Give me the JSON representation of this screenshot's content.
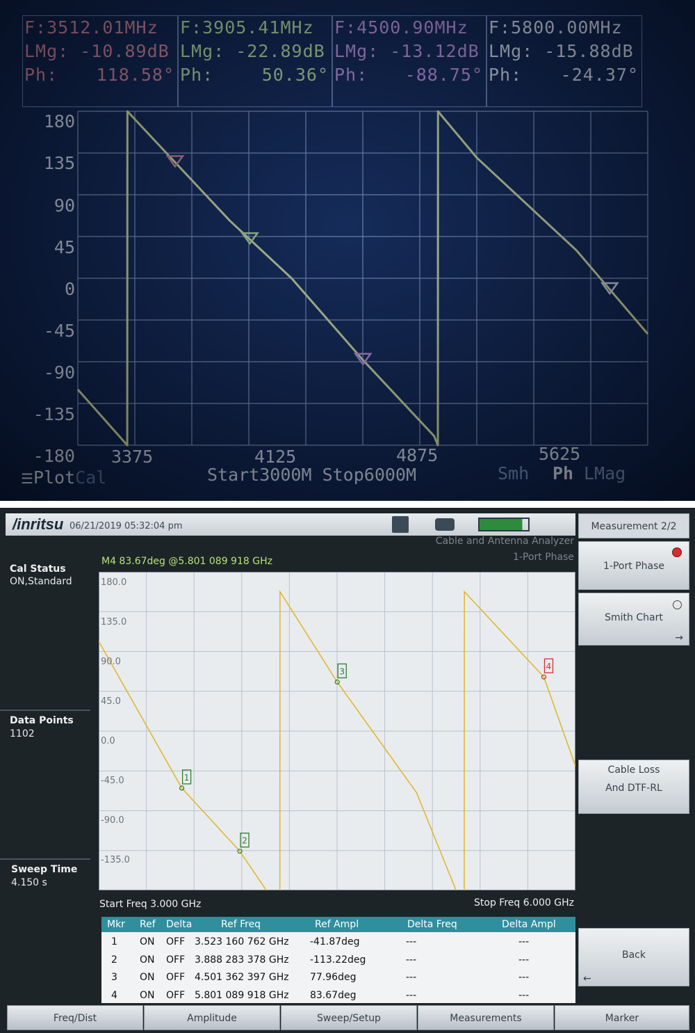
{
  "vna": {
    "markers": [
      {
        "freq": "F:3512.01MHz",
        "lmag": "LMg: -10.89dB",
        "phase_label": "Ph:",
        "phase_value": "118.58°",
        "color": "#e58a9a"
      },
      {
        "freq": "F:3905.41MHz",
        "lmag": "LMg: -22.89dB",
        "phase_label": "Ph:",
        "phase_value": "50.36°",
        "color": "#c8ee9a"
      },
      {
        "freq": "F:4500.90MHz",
        "lmag": "LMg: -13.12dB",
        "phase_label": "Ph:",
        "phase_value": "-88.75°",
        "color": "#d59ae8"
      },
      {
        "freq": "F:5800.00MHz",
        "lmag": "LMg: -15.88dB",
        "phase_label": "Ph:",
        "phase_value": "-24.37°",
        "color": "#e9eef6"
      }
    ],
    "y_ticks": [
      "180",
      "135",
      "90",
      "45",
      "0",
      "-45",
      "-90",
      "-135",
      "-180"
    ],
    "x_ticks": [
      "3375",
      "4125",
      "4875",
      "5625"
    ],
    "footer": {
      "plot": "Plot",
      "cal": "Cal",
      "start_stop": "Start3000M Stop6000M",
      "smh": "Smh",
      "ph": "Ph",
      "lmag": "LMag"
    },
    "trace_color": "#eef2a0"
  },
  "chart_data": {
    "type": "line",
    "xlabel": "",
    "ylabel": "",
    "xlim": [
      3000,
      6000
    ],
    "ylim": [
      -180,
      180
    ],
    "series": [
      {
        "x": [
          3000,
          3260,
          3261,
          3480,
          3800,
          4125,
          4500,
          4875,
          4895,
          4896,
          5100,
          5625,
          6000
        ],
        "y": [
          -120,
          -180,
          180,
          132,
          62,
          0,
          -88,
          -170,
          -180,
          180,
          130,
          30,
          -60
        ]
      }
    ],
    "markers": [
      {
        "label": "1",
        "freq_mhz": 3512.01,
        "value": 118.58
      },
      {
        "label": "2",
        "freq_mhz": 3905.41,
        "value": 50.36
      },
      {
        "label": "3",
        "freq_mhz": 4500.9,
        "value": -88.75
      },
      {
        "label": "4",
        "freq_mhz": 5800.0,
        "value": -24.37
      }
    ]
  },
  "anritsu": {
    "brand": "/inritsu",
    "datetime": "06/21/2019 05:32:04 pm",
    "app_name": "Cable and Antenna Analyzer",
    "mode": "1-Port Phase",
    "marker_readout": "M4 83.67deg @5.801 089 918 GHz",
    "cal_status_title": "Cal Status",
    "cal_status_value": "ON,Standard",
    "data_points_title": "Data Points",
    "data_points_value": "1102",
    "sweep_time_title": "Sweep Time",
    "sweep_time_value": "4.150 s",
    "y_ticks": [
      "180.0",
      "135.0",
      "90.0",
      "45.0",
      "0.0",
      "-45.0",
      "-90.0",
      "-135.0"
    ],
    "start_freq": "Start Freq 3.000 GHz",
    "stop_freq": "Stop Freq 6.000 GHz",
    "menu_title": "Measurement 2/2",
    "right_buttons": [
      "1-Port Phase",
      "Smith Chart",
      "Cable Loss And DTF-RL",
      "Back"
    ],
    "bottom_buttons": [
      "Freq/Dist",
      "Amplitude",
      "Sweep/Setup",
      "Measurements",
      "Marker"
    ],
    "table_headers": [
      "Mkr",
      "Ref",
      "Delta",
      "Ref Freq",
      "Ref Ampl",
      "Delta Freq",
      "Delta Ampl"
    ],
    "table_rows": [
      [
        "1",
        "ON",
        "OFF",
        "3.523 160 762 GHz",
        "-41.87deg",
        "---",
        "---"
      ],
      [
        "2",
        "ON",
        "OFF",
        "3.888 283 378 GHz",
        "-113.22deg",
        "---",
        "---"
      ],
      [
        "3",
        "ON",
        "OFF",
        "4.501 362 397 GHz",
        "77.96deg",
        "---",
        "---"
      ],
      [
        "4",
        "ON",
        "OFF",
        "5.801 089 918 GHz",
        "83.67deg",
        "---",
        "---"
      ]
    ],
    "trace_color": "#e0b830",
    "header_color": "#2f8f9d"
  },
  "anritsu_chart": {
    "type": "line",
    "xlabel": "",
    "ylabel": "",
    "xlim": [
      3.0,
      6.0
    ],
    "ylim": [
      -157.5,
      202.5
    ],
    "series": [
      {
        "x": [
          3.0,
          3.523,
          3.888,
          4.14,
          4.141,
          4.501,
          5.0,
          5.3,
          5.301,
          5.801,
          6.0
        ],
        "y": [
          124,
          -41.87,
          -113.22,
          -180,
          180,
          77.96,
          -47,
          -180,
          180,
          83.67,
          -17
        ]
      }
    ],
    "markers": [
      {
        "label": "1",
        "freq_ghz": 3.523,
        "value": -41.87,
        "color": "#2e7d32"
      },
      {
        "label": "2",
        "freq_ghz": 3.888,
        "value": -113.22,
        "color": "#2e7d32"
      },
      {
        "label": "3",
        "freq_ghz": 4.501,
        "value": 77.96,
        "color": "#2e7d32"
      },
      {
        "label": "4",
        "freq_ghz": 5.801,
        "value": 83.67,
        "color": "#d32f2f"
      }
    ]
  }
}
